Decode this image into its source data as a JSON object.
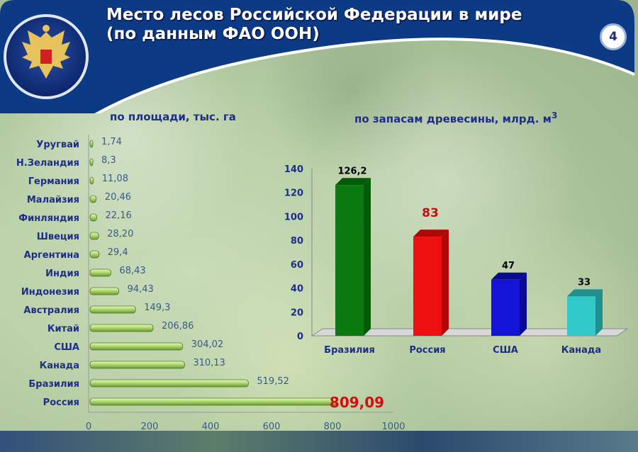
{
  "header": {
    "title_line1": "Место лесов Российской Федерации в мире",
    "title_line2": "(по данным ФАО ООН)",
    "page_number": "4"
  },
  "colors": {
    "header_blue": "#0d3a85",
    "label_blue": "#1f2d8a",
    "bar_green_light": "#b8dd78",
    "highlight_red": "#d01010"
  },
  "chart_data": [
    {
      "type": "bar",
      "orientation": "horizontal",
      "title": "по площади, тыс. га",
      "categories": [
        "Уругвай",
        "Н.Зеландия",
        "Германия",
        "Малайзия",
        "Финляндия",
        "Швеция",
        "Аргентина",
        "Индия",
        "Индонезия",
        "Австралия",
        "Китай",
        "США",
        "Канада",
        "Бразилия",
        "Россия"
      ],
      "values": [
        1.74,
        8.3,
        11.08,
        20.46,
        22.16,
        28.2,
        29.4,
        68.43,
        94.43,
        149.3,
        206.86,
        304.02,
        310.13,
        519.52,
        809.09
      ],
      "labels": [
        "1,74",
        "8,3",
        "11,08",
        "20,46",
        "22,16",
        "28,20",
        "29,4",
        "68,43",
        "94,43",
        "149,3",
        "206,86",
        "304,02",
        "310,13",
        "519,52",
        "809,09"
      ],
      "highlight": "Россия",
      "xlim": [
        0,
        1000
      ],
      "xticks": [
        "0",
        "200",
        "400",
        "600",
        "800",
        "1000"
      ],
      "grid": false
    },
    {
      "type": "bar",
      "title": "по запасам древесины, млрд. м",
      "title_sup": "3",
      "categories": [
        "Бразилия",
        "Россия",
        "США",
        "Канада"
      ],
      "values": [
        126.2,
        83,
        47,
        33
      ],
      "labels": [
        "126,2",
        "83",
        "47",
        "33"
      ],
      "colors": [
        "#0a7a10",
        "#ee1010",
        "#1414d8",
        "#30c8c8"
      ],
      "ylim": [
        0,
        140
      ],
      "yticks": [
        "0",
        "20",
        "40",
        "60",
        "80",
        "100",
        "120",
        "140"
      ],
      "grid": false
    }
  ]
}
